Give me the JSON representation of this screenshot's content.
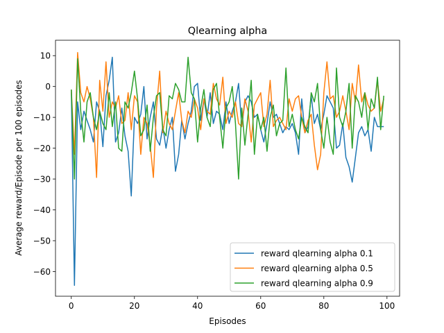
{
  "chart_data": {
    "type": "line",
    "title": "Qlearning alpha",
    "xlabel": "Episodes",
    "ylabel": "Average reward/Episode per 100 episodes",
    "xlim": [
      -5,
      104
    ],
    "ylim": [
      -68,
      15
    ],
    "xticks": [
      0,
      20,
      40,
      60,
      80,
      100
    ],
    "yticks": [
      10,
      0,
      -10,
      -20,
      -30,
      -40,
      -50,
      -60
    ],
    "ytick_labels": [
      "10",
      "0",
      "−10",
      "−20",
      "−30",
      "−40",
      "−50",
      "−60"
    ],
    "grid": false,
    "legend_position": "lower right",
    "series": [
      {
        "name": "reward qlearning alpha 0.1",
        "color": "#1f77b4",
        "x": [
          0,
          1,
          2,
          3,
          4,
          5,
          6,
          7,
          8,
          9,
          10,
          11,
          12,
          13,
          14,
          15,
          16,
          17,
          18,
          19,
          20,
          21,
          22,
          23,
          24,
          25,
          26,
          27,
          28,
          29,
          30,
          31,
          32,
          33,
          34,
          35,
          36,
          37,
          38,
          39,
          40,
          41,
          42,
          43,
          44,
          45,
          46,
          47,
          48,
          49,
          50,
          51,
          52,
          53,
          54,
          55,
          56,
          57,
          58,
          59,
          60,
          61,
          62,
          63,
          64,
          65,
          66,
          67,
          68,
          69,
          70,
          71,
          72,
          73,
          74,
          75,
          76,
          77,
          78,
          79,
          80,
          81,
          82,
          83,
          84,
          85,
          86,
          87,
          88,
          89,
          90,
          91,
          92,
          93,
          94,
          95,
          96,
          97,
          98,
          99
        ],
        "values": [
          -1,
          -64.5,
          -5,
          -14,
          -8,
          -11,
          -14,
          -18,
          -5,
          -8,
          -19.5,
          -3,
          2,
          9.5,
          -18,
          -15,
          -7,
          -16,
          -21,
          -35.5,
          -10,
          -12,
          -9,
          0,
          -17,
          -10,
          -5,
          -17,
          -19,
          -13,
          -20,
          -14,
          -10,
          -27.5,
          -22,
          -11,
          -17,
          -12,
          -8,
          0,
          1,
          -11,
          -4,
          -10,
          -2,
          -12,
          -8,
          -9,
          -14,
          -5,
          -12,
          -8,
          -5,
          1,
          -13,
          -5,
          -3,
          -5,
          -10,
          -9,
          -14,
          -18,
          -12,
          -5,
          -10,
          -9,
          -12,
          -15,
          -13,
          -14,
          -12,
          -15,
          -22,
          -4,
          -15,
          -13,
          -3,
          -12,
          -9,
          -14,
          -9,
          -3,
          -5,
          -7,
          -20,
          -19,
          -12,
          -23,
          -26,
          -31,
          -23,
          -15,
          -13,
          -16,
          -14,
          -21,
          -10,
          -13,
          -13,
          -13
        ]
      },
      {
        "name": "reward qlearning alpha 0.5",
        "color": "#ff7f0e",
        "x": [
          0,
          1,
          2,
          3,
          4,
          5,
          6,
          7,
          8,
          9,
          10,
          11,
          12,
          13,
          14,
          15,
          16,
          17,
          18,
          19,
          20,
          21,
          22,
          23,
          24,
          25,
          26,
          27,
          28,
          29,
          30,
          31,
          32,
          33,
          34,
          35,
          36,
          37,
          38,
          39,
          40,
          41,
          42,
          43,
          44,
          45,
          46,
          47,
          48,
          49,
          50,
          51,
          52,
          53,
          54,
          55,
          56,
          57,
          58,
          59,
          60,
          61,
          62,
          63,
          64,
          65,
          66,
          67,
          68,
          69,
          70,
          71,
          72,
          73,
          74,
          75,
          76,
          77,
          78,
          79,
          80,
          81,
          82,
          83,
          84,
          85,
          86,
          87,
          88,
          89,
          90,
          91,
          92,
          93,
          94,
          95,
          96,
          97,
          98,
          99
        ],
        "values": [
          -1,
          -22,
          11,
          -2,
          -5,
          0,
          -4,
          -10,
          -29.5,
          2,
          -8,
          8,
          -10,
          -5,
          -7,
          -3,
          -12,
          -11,
          -2,
          -14,
          -3,
          -5,
          -22,
          -10,
          -12,
          -19,
          -29.5,
          -7,
          5,
          -15,
          -8,
          -12,
          -14,
          -8,
          -2,
          -11,
          -15,
          -8,
          -10,
          -4,
          -7,
          -14,
          -4,
          -8,
          -9,
          1,
          -4,
          -6,
          3,
          -12,
          -8,
          -10,
          -5,
          -12,
          -13,
          -4,
          -8,
          -18,
          -6,
          -4,
          -2,
          -13,
          -9,
          2,
          -13,
          -11,
          -10,
          -12,
          -14,
          -4,
          -8,
          -4,
          -3,
          -10,
          -15,
          -11,
          -9,
          -19,
          -27,
          -22,
          -2,
          8,
          -4,
          -3,
          -10,
          -8,
          -3,
          -8,
          -14,
          1,
          -5,
          7,
          -5,
          -2,
          -6,
          -8,
          -7,
          2,
          -8,
          -4
        ]
      },
      {
        "name": "reward qlearning alpha 0.9",
        "color": "#2ca02c",
        "x": [
          0,
          1,
          2,
          3,
          4,
          5,
          6,
          7,
          8,
          9,
          10,
          11,
          12,
          13,
          14,
          15,
          16,
          17,
          18,
          19,
          20,
          21,
          22,
          23,
          24,
          25,
          26,
          27,
          28,
          29,
          30,
          31,
          32,
          33,
          34,
          35,
          36,
          37,
          38,
          39,
          40,
          41,
          42,
          43,
          44,
          45,
          46,
          47,
          48,
          49,
          50,
          51,
          52,
          53,
          54,
          55,
          56,
          57,
          58,
          59,
          60,
          61,
          62,
          63,
          64,
          65,
          66,
          67,
          68,
          69,
          70,
          71,
          72,
          73,
          74,
          75,
          76,
          77,
          78,
          79,
          80,
          81,
          82,
          83,
          84,
          85,
          86,
          87,
          88,
          89,
          90,
          91,
          92,
          93,
          94,
          95,
          96,
          97,
          98,
          99
        ],
        "values": [
          -1,
          -30,
          9,
          -8,
          -18,
          -5,
          -2,
          -10,
          -14,
          -8,
          -12,
          -14,
          -2,
          -13,
          -5,
          -20,
          -21,
          -5,
          -7,
          -2,
          5,
          -4,
          -16,
          -14,
          -6,
          -21,
          -10,
          -3,
          -2,
          -14,
          -16,
          -3,
          -4,
          1,
          -1,
          -5,
          -5,
          9.5,
          -2,
          -4,
          -18,
          -7,
          -1,
          -10,
          -13,
          -1,
          1,
          -10,
          -20,
          -7,
          -5,
          0,
          -12,
          -30,
          -7,
          -19,
          -9,
          2,
          -22,
          -9,
          -14,
          -10,
          -21,
          -10,
          -6,
          -16,
          -12,
          -11,
          6,
          -13,
          -9,
          -14,
          -17,
          -10,
          -13,
          -15,
          -2,
          -5,
          1,
          -14,
          -20,
          -10,
          -18,
          -22,
          6,
          -10,
          -13,
          -8,
          1,
          -20,
          -3,
          -5,
          -10,
          -2,
          -14,
          -4,
          -7,
          3,
          -14,
          -3
        ]
      }
    ]
  }
}
